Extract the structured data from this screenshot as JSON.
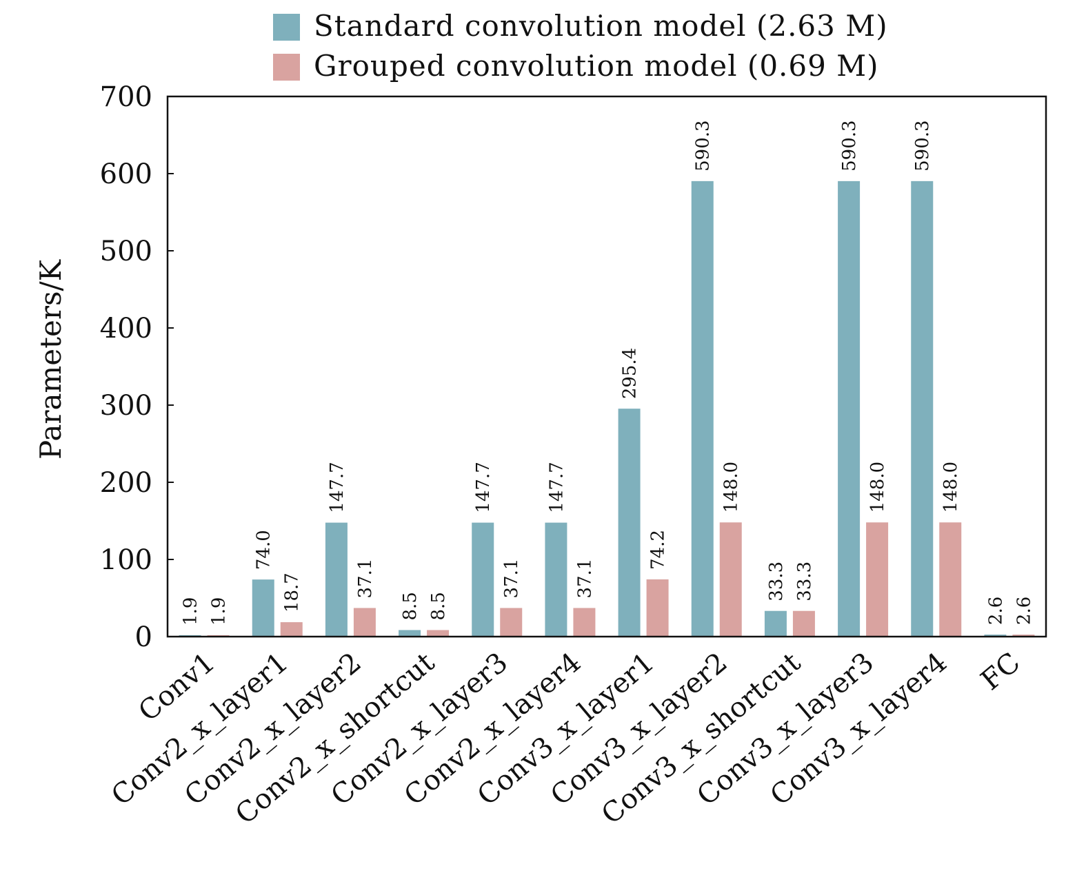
{
  "chart_data": {
    "type": "bar",
    "title": "",
    "xlabel": "",
    "ylabel": "Parameters/K",
    "ylim": [
      0,
      700
    ],
    "yticks": [
      0,
      100,
      200,
      300,
      400,
      500,
      600,
      700
    ],
    "grid": false,
    "legend_position": "top",
    "categories": [
      "Conv1",
      "Conv2_x_layer1",
      "Conv2_x_layer2",
      "Conv2_x_shortcut",
      "Conv2_x_layer3",
      "Conv2_x_layer4",
      "Conv3_x_layer1",
      "Conv3_x_layer2",
      "Conv3_x_shortcut",
      "Conv3_x_layer3",
      "Conv3_x_layer4",
      "FC"
    ],
    "series": [
      {
        "name": "Standard convolution model (2.63 M)",
        "color": "#7fb0bc",
        "values": [
          1.9,
          74.0,
          147.7,
          8.5,
          147.7,
          147.7,
          295.4,
          590.3,
          33.3,
          590.3,
          590.3,
          2.6
        ],
        "labels": [
          "1.9",
          "74.0",
          "147.7",
          "8.5",
          "147.7",
          "147.7",
          "295.4",
          "590.3",
          "33.3",
          "590.3",
          "590.3",
          "2.6"
        ]
      },
      {
        "name": "Grouped convolution model (0.69 M)",
        "color": "#d9a3a0",
        "values": [
          1.9,
          18.7,
          37.1,
          8.5,
          37.1,
          37.1,
          74.2,
          148.0,
          33.3,
          148.0,
          148.0,
          2.6
        ],
        "labels": [
          "1.9",
          "18.7",
          "37.1",
          "8.5",
          "37.1",
          "37.1",
          "74.2",
          "148.0",
          "33.3",
          "148.0",
          "148.0",
          "2.6"
        ]
      }
    ]
  }
}
